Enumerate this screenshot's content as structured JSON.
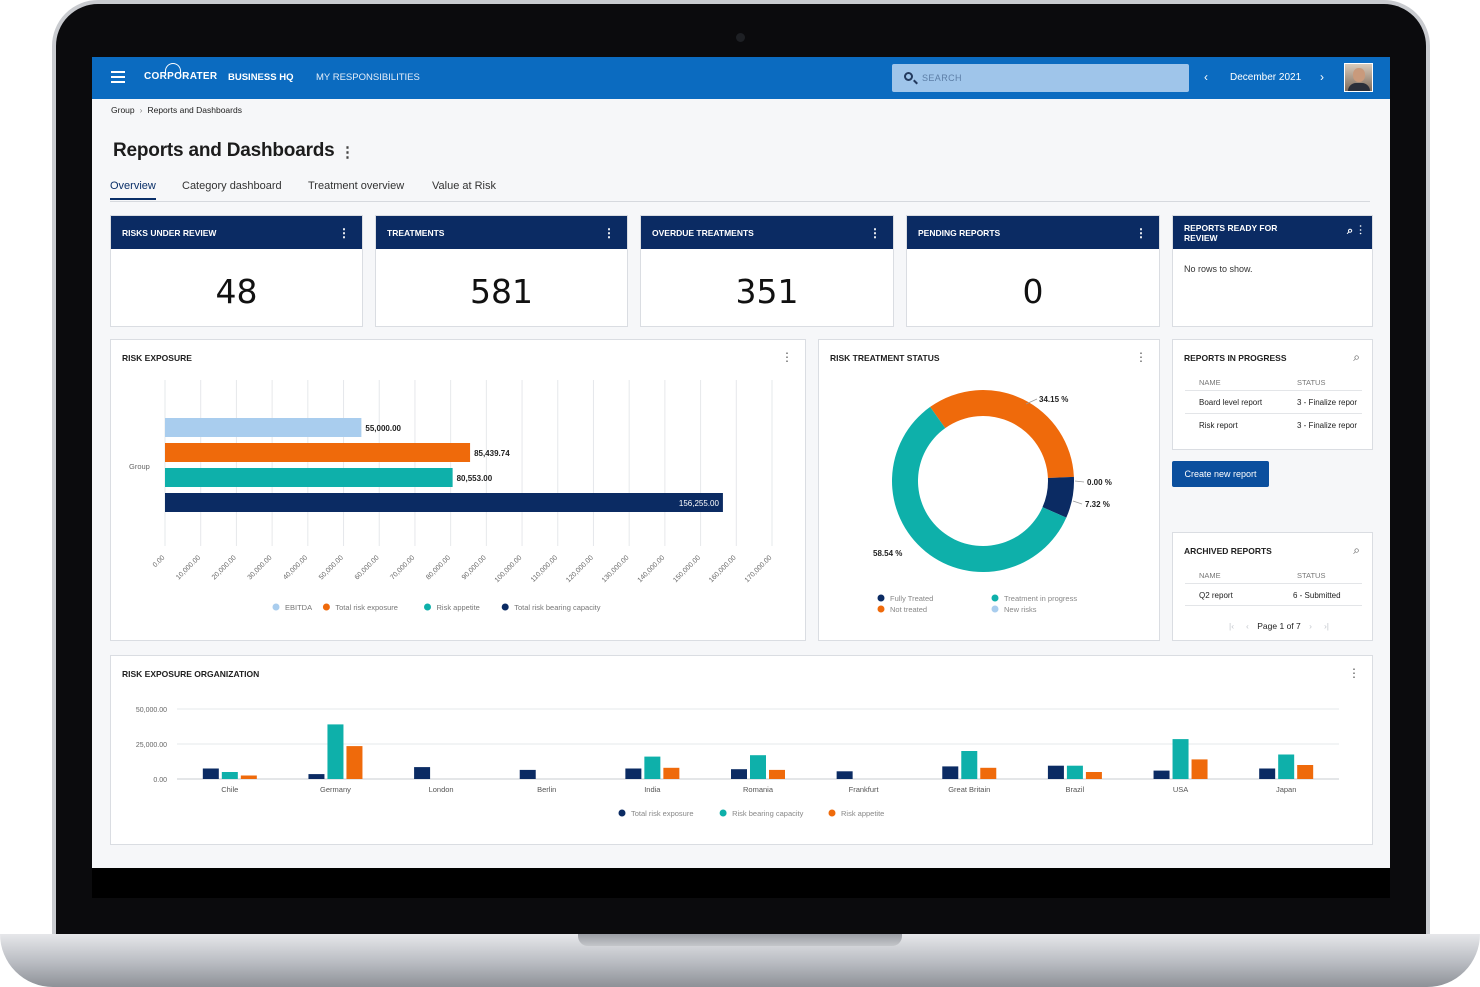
{
  "app": {
    "logo": "CORPORATER",
    "nav": [
      "BUSINESS HQ",
      "MY RESPONSIBILITIES"
    ],
    "search_placeholder": "SEARCH",
    "period": "December 2021"
  },
  "breadcrumb": [
    "Group",
    "Reports and Dashboards"
  ],
  "page_title": "Reports and Dashboards",
  "tabs": [
    "Overview",
    "Category dashboard",
    "Treatment overview",
    "Value at Risk"
  ],
  "active_tab": "Overview",
  "kpis": [
    {
      "label": "RISKS UNDER REVIEW",
      "value": "48"
    },
    {
      "label": "TREATMENTS",
      "value": "581"
    },
    {
      "label": "OVERDUE TREATMENTS",
      "value": "351"
    },
    {
      "label": "PENDING REPORTS",
      "value": "0"
    }
  ],
  "reports_ready": {
    "title": "REPORTS READY FOR REVIEW",
    "empty_text": "No rows to show."
  },
  "reports_in_progress": {
    "title": "REPORTS IN PROGRESS",
    "columns": [
      "NAME",
      "STATUS"
    ],
    "rows": [
      {
        "name": "Board level report",
        "status": "3 - Finalize repor"
      },
      {
        "name": "Risk report",
        "status": "3 - Finalize repor"
      }
    ]
  },
  "create_report_button": "Create new report",
  "archived_reports": {
    "title": "ARCHIVED REPORTS",
    "columns": [
      "NAME",
      "STATUS"
    ],
    "rows": [
      {
        "name": "Q2 report",
        "status": "6 - Submitted"
      }
    ],
    "pager": "Page 1 of 7"
  },
  "colors": {
    "header": "#0b6bc0",
    "kpi_header": "#0b2b63",
    "ebitda": "#a9cdee",
    "total_risk_exposure": "#ef6a0b",
    "risk_appetite": "#0eb0aa",
    "risk_bearing_capacity": "#0b2b63",
    "new_risks": "#a9cdee"
  },
  "chart_data": [
    {
      "type": "bar",
      "orientation": "horizontal",
      "title": "RISK EXPOSURE",
      "categories": [
        "Group"
      ],
      "xlim": [
        0,
        170000
      ],
      "tick_step": 10000,
      "tick_labels": [
        "0.00",
        "10,000.00",
        "20,000.00",
        "30,000.00",
        "40,000.00",
        "50,000.00",
        "60,000.00",
        "70,000.00",
        "80,000.00",
        "90,000.00",
        "100,000.00",
        "110,000.00",
        "120,000.00",
        "130,000.00",
        "140,000.00",
        "150,000.00",
        "160,000.00",
        "170,000.00"
      ],
      "grid": true,
      "legend": "bottom",
      "series": [
        {
          "name": "EBITDA",
          "values": [
            55000
          ],
          "label": "55,000.00",
          "color": "#a9cdee"
        },
        {
          "name": "Total risk exposure",
          "values": [
            85439.74
          ],
          "label": "85,439.74",
          "color": "#ef6a0b"
        },
        {
          "name": "Risk appetite",
          "values": [
            80553
          ],
          "label": "80,553.00",
          "color": "#0eb0aa"
        },
        {
          "name": "Total risk bearing capacity",
          "values": [
            156255
          ],
          "label": "156,255.00",
          "color": "#0b2b63"
        }
      ]
    },
    {
      "type": "pie",
      "donut": true,
      "title": "RISK TREATMENT STATUS",
      "legend": "bottom",
      "slices": [
        {
          "name": "Not treated",
          "value": 34.15,
          "label": "34.15 %",
          "color": "#ef6a0b"
        },
        {
          "name": "New risks",
          "value": 0.0,
          "label": "0.00 %",
          "color": "#a9cdee"
        },
        {
          "name": "Fully Treated",
          "value": 7.32,
          "label": "7.32 %",
          "color": "#0b2b63"
        },
        {
          "name": "Treatment in progress",
          "value": 58.54,
          "label": "58.54 %",
          "color": "#0eb0aa"
        }
      ],
      "legend_order": [
        "Fully Treated",
        "Treatment in progress",
        "Not treated",
        "New risks"
      ]
    },
    {
      "type": "bar",
      "orientation": "vertical",
      "title": "RISK EXPOSURE ORGANIZATION",
      "categories": [
        "Chile",
        "Germany",
        "London",
        "Berlin",
        "India",
        "Romania",
        "Frankfurt",
        "Great Britain",
        "Brazil",
        "USA",
        "Japan"
      ],
      "ylim": [
        0,
        50000
      ],
      "y_ticks": [
        "0.00",
        "25,000.00",
        "50,000.00"
      ],
      "grid": true,
      "legend": "bottom",
      "series": [
        {
          "name": "Total risk exposure",
          "color": "#0b2b63",
          "values": [
            7500,
            3500,
            8500,
            6500,
            7500,
            7000,
            5500,
            9000,
            9500,
            6000,
            7500
          ]
        },
        {
          "name": "Risk bearing capacity",
          "color": "#0eb0aa",
          "values": [
            5000,
            39000,
            0,
            0,
            16000,
            17000,
            0,
            20000,
            9500,
            28500,
            17500
          ]
        },
        {
          "name": "Risk appetite",
          "color": "#ef6a0b",
          "values": [
            2500,
            23500,
            0,
            0,
            8000,
            6500,
            0,
            8000,
            5000,
            14000,
            10000
          ]
        }
      ]
    }
  ]
}
